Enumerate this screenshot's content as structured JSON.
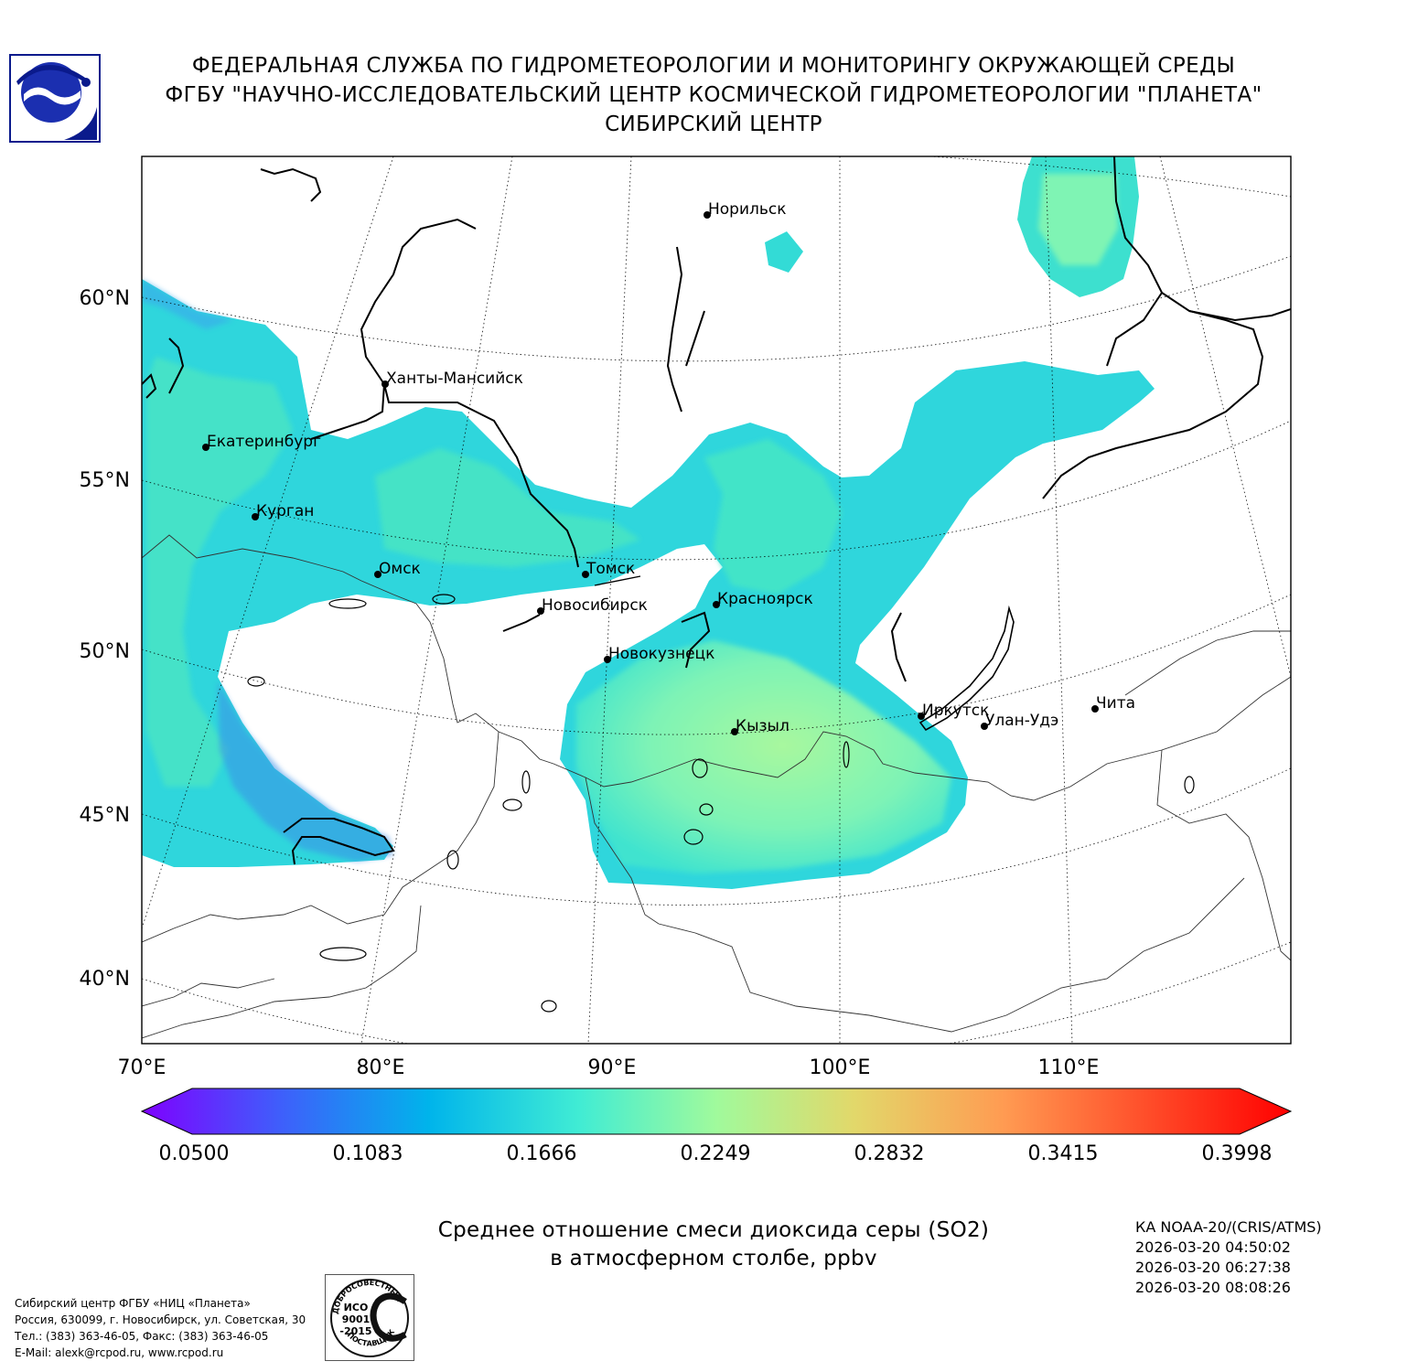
{
  "header": {
    "line1": "ФЕДЕРАЛЬНАЯ СЛУЖБА ПО ГИДРОМЕТЕОРОЛОГИИ И МОНИТОРИНГУ ОКРУЖАЮЩЕЙ СРЕДЫ",
    "line2": "ФГБУ \"НАУЧНО-ИССЛЕДОВАТЕЛЬСКИЙ ЦЕНТР КОСМИЧЕСКОЙ ГИДРОМЕТЕОРОЛОГИИ \"ПЛАНЕТА\"",
    "line3": "СИБИРСКИЙ ЦЕНТР"
  },
  "map": {
    "lat_labels": [
      "60°N",
      "55°N",
      "50°N",
      "45°N",
      "40°N"
    ],
    "lon_labels": [
      "70°E",
      "80°E",
      "90°E",
      "100°E",
      "110°E"
    ],
    "cities": [
      {
        "name": "Норильск"
      },
      {
        "name": "Ханты-Мансийск"
      },
      {
        "name": "Екатеринбург"
      },
      {
        "name": "Курган"
      },
      {
        "name": "Омск"
      },
      {
        "name": "Томск"
      },
      {
        "name": "Новосибирск"
      },
      {
        "name": "Красноярск"
      },
      {
        "name": "Новокузнецк"
      },
      {
        "name": "Кызыл"
      },
      {
        "name": "Иркутск"
      },
      {
        "name": "Улан-Удэ"
      },
      {
        "name": "Чита"
      }
    ]
  },
  "colorbar": {
    "ticks": [
      "0.0500",
      "0.1083",
      "0.1666",
      "0.2249",
      "0.2832",
      "0.3415",
      "0.3998"
    ],
    "colors": [
      "#7f00ff",
      "#3f5efb",
      "#00b4eb",
      "#40ecd4",
      "#a0fa9c",
      "#e2d86a",
      "#ff9b52",
      "#ff4a28",
      "#ff0000"
    ]
  },
  "title": {
    "line1": "Среднее отношение смеси диоксида серы (SO2)",
    "line2": "в атмосферном столбе, ppbv"
  },
  "satellite": {
    "instrument": "КА NOAA-20/(CRIS/ATMS)",
    "times": [
      "2026-03-20 04:50:02",
      "2026-03-20 06:27:38",
      "2026-03-20 08:08:26"
    ]
  },
  "footer": {
    "lines": [
      "Сибирский центр ФГБУ «НИЦ «Планета»",
      "Россия, 630099, г. Новосибирск, ул. Советская, 30",
      "Тел.: (383) 363-46-05, Факс: (383) 363-46-05",
      "E-Mail: alexk@rcpod.ru, www.rcpod.ru"
    ]
  },
  "stamp": {
    "top_text": "ДОБРОСОВЕСТНЫЙ",
    "iso_lines": [
      "ИСО",
      "9001",
      "-2015"
    ],
    "bottom_text": "ПОСТАВЩИК"
  }
}
